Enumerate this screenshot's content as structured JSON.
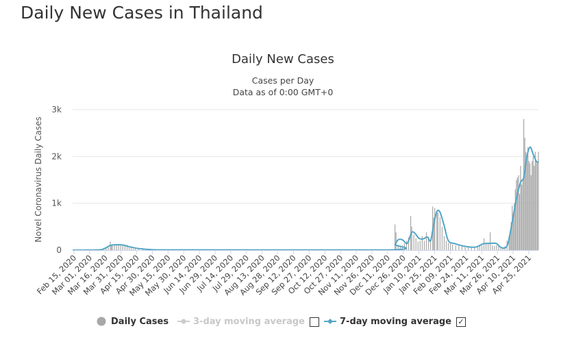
{
  "page": {
    "title": "Daily New Cases in Thailand"
  },
  "legend": {
    "daily_cases": "Daily Cases",
    "ma3": "3-day moving average",
    "ma7": "7-day moving average",
    "ma3_checked": false,
    "ma7_checked": true,
    "check_mark": "✓"
  },
  "colors": {
    "bars": "#a8a8a8",
    "line": "#51a5c6",
    "grid": "#e6e6e6",
    "ma3_disabled": "#cccccc"
  },
  "chart_data": {
    "type": "bar",
    "title": "Daily New Cases",
    "subtitle": [
      "Cases per Day",
      "Data as of 0:00 GMT+0"
    ],
    "ylabel": "Novel Coronavirus Daily Cases",
    "xlabel": "",
    "ylim": [
      0,
      3000
    ],
    "yticks": [
      0,
      1000,
      2000,
      3000
    ],
    "ytick_labels": [
      "0",
      "1k",
      "2k",
      "3k"
    ],
    "x_tick_labels": [
      "Feb 15, 2020",
      "Mar 01, 2020",
      "Mar 16, 2020",
      "Mar 31, 2020",
      "Apr 15, 2020",
      "Apr 30, 2020",
      "May 15, 2020",
      "May 30, 2020",
      "Jun 14, 2020",
      "Jun 29, 2020",
      "Jul 14, 2020",
      "Jul 29, 2020",
      "Aug 13, 2020",
      "Aug 28, 2020",
      "Sep 12, 2020",
      "Sep 27, 2020",
      "Oct 12, 2020",
      "Oct 27, 2020",
      "Nov 11, 2020",
      "Nov 26, 2020",
      "Dec 11, 2020",
      "Dec 26, 2020",
      "Jan 10, 2021",
      "Jan 25, 2021",
      "Feb 09, 2021",
      "Feb 24, 2021",
      "Mar 11, 2021",
      "Mar 26, 2021",
      "Apr 10, 2021",
      "Apr 25, 2021"
    ],
    "x_start": "2020-02-15",
    "x_end": "2021-05-05",
    "grid": true,
    "legend_position": "bottom",
    "series": [
      {
        "name": "Daily Cases",
        "kind": "bar",
        "points": [
          [
            "2020-03-16",
            30
          ],
          [
            "2020-03-18",
            50
          ],
          [
            "2020-03-20",
            60
          ],
          [
            "2020-03-22",
            180
          ],
          [
            "2020-03-23",
            110
          ],
          [
            "2020-03-24",
            100
          ],
          [
            "2020-03-26",
            110
          ],
          [
            "2020-03-28",
            120
          ],
          [
            "2020-03-30",
            130
          ],
          [
            "2020-04-01",
            110
          ],
          [
            "2020-04-03",
            100
          ],
          [
            "2020-04-05",
            100
          ],
          [
            "2020-04-07",
            110
          ],
          [
            "2020-04-09",
            60
          ],
          [
            "2020-04-11",
            50
          ],
          [
            "2020-04-13",
            30
          ],
          [
            "2020-04-15",
            30
          ],
          [
            "2020-04-18",
            25
          ],
          [
            "2020-04-22",
            20
          ],
          [
            "2020-04-26",
            15
          ],
          [
            "2020-05-01",
            8
          ],
          [
            "2020-05-08",
            5
          ],
          [
            "2020-12-19",
            550
          ],
          [
            "2020-12-20",
            380
          ],
          [
            "2020-12-22",
            110
          ],
          [
            "2020-12-24",
            70
          ],
          [
            "2020-12-26",
            100
          ],
          [
            "2020-12-28",
            140
          ],
          [
            "2020-12-30",
            200
          ],
          [
            "2021-01-01",
            270
          ],
          [
            "2021-01-03",
            730
          ],
          [
            "2021-01-04",
            500
          ],
          [
            "2021-01-06",
            330
          ],
          [
            "2021-01-08",
            250
          ],
          [
            "2021-01-10",
            180
          ],
          [
            "2021-01-12",
            200
          ],
          [
            "2021-01-14",
            300
          ],
          [
            "2021-01-16",
            200
          ],
          [
            "2021-01-18",
            380
          ],
          [
            "2021-01-20",
            250
          ],
          [
            "2021-01-22",
            200
          ],
          [
            "2021-01-24",
            930
          ],
          [
            "2021-01-25",
            700
          ],
          [
            "2021-01-26",
            900
          ],
          [
            "2021-01-28",
            850
          ],
          [
            "2021-01-29",
            800
          ],
          [
            "2021-01-31",
            700
          ],
          [
            "2021-02-02",
            500
          ],
          [
            "2021-02-04",
            300
          ],
          [
            "2021-02-06",
            200
          ],
          [
            "2021-02-08",
            150
          ],
          [
            "2021-02-10",
            160
          ],
          [
            "2021-02-12",
            120
          ],
          [
            "2021-02-15",
            100
          ],
          [
            "2021-02-18",
            90
          ],
          [
            "2021-02-21",
            80
          ],
          [
            "2021-02-24",
            60
          ],
          [
            "2021-02-27",
            70
          ],
          [
            "2021-03-02",
            60
          ],
          [
            "2021-03-05",
            60
          ],
          [
            "2021-03-08",
            80
          ],
          [
            "2021-03-10",
            110
          ],
          [
            "2021-03-12",
            100
          ],
          [
            "2021-03-14",
            250
          ],
          [
            "2021-03-16",
            150
          ],
          [
            "2021-03-18",
            160
          ],
          [
            "2021-03-20",
            380
          ],
          [
            "2021-03-22",
            100
          ],
          [
            "2021-03-24",
            90
          ],
          [
            "2021-03-26",
            110
          ],
          [
            "2021-03-28",
            90
          ],
          [
            "2021-03-30",
            40
          ],
          [
            "2021-04-01",
            50
          ],
          [
            "2021-04-03",
            80
          ],
          [
            "2021-04-05",
            200
          ],
          [
            "2021-04-07",
            300
          ],
          [
            "2021-04-08",
            400
          ],
          [
            "2021-04-09",
            600
          ],
          [
            "2021-04-10",
            950
          ],
          [
            "2021-04-11",
            800
          ],
          [
            "2021-04-12",
            1000
          ],
          [
            "2021-04-13",
            1300
          ],
          [
            "2021-04-14",
            1500
          ],
          [
            "2021-04-15",
            1550
          ],
          [
            "2021-04-16",
            1600
          ],
          [
            "2021-04-17",
            1200
          ],
          [
            "2021-04-18",
            1800
          ],
          [
            "2021-04-19",
            1400
          ],
          [
            "2021-04-20",
            1500
          ],
          [
            "2021-04-21",
            2800
          ],
          [
            "2021-04-22",
            2400
          ],
          [
            "2021-04-23",
            2100
          ],
          [
            "2021-04-24",
            2000
          ],
          [
            "2021-04-25",
            2200
          ],
          [
            "2021-04-26",
            1900
          ],
          [
            "2021-04-27",
            1850
          ],
          [
            "2021-04-28",
            1600
          ],
          [
            "2021-04-29",
            1900
          ],
          [
            "2021-04-30",
            2000
          ],
          [
            "2021-05-01",
            1800
          ],
          [
            "2021-05-02",
            2100
          ],
          [
            "2021-05-03",
            1900
          ],
          [
            "2021-05-04",
            1900
          ],
          [
            "2021-05-05",
            2100
          ]
        ]
      },
      {
        "name": "7-day moving average",
        "kind": "line",
        "points": [
          [
            "2020-02-15",
            0
          ],
          [
            "2020-03-10",
            5
          ],
          [
            "2020-03-16",
            30
          ],
          [
            "2020-03-22",
            100
          ],
          [
            "2020-03-28",
            115
          ],
          [
            "2020-04-03",
            110
          ],
          [
            "2020-04-08",
            80
          ],
          [
            "2020-04-15",
            45
          ],
          [
            "2020-04-22",
            25
          ],
          [
            "2020-05-01",
            10
          ],
          [
            "2020-05-15",
            5
          ],
          [
            "2020-06-14",
            5
          ],
          [
            "2020-12-15",
            5
          ],
          [
            "2020-12-19",
            120
          ],
          [
            "2020-12-22",
            220
          ],
          [
            "2020-12-26",
            220
          ],
          [
            "2020-12-30",
            140
          ],
          [
            "2021-01-01",
            200
          ],
          [
            "2021-01-04",
            380
          ],
          [
            "2021-01-07",
            360
          ],
          [
            "2021-01-11",
            250
          ],
          [
            "2021-01-15",
            240
          ],
          [
            "2021-01-19",
            280
          ],
          [
            "2021-01-22",
            200
          ],
          [
            "2021-01-25",
            550
          ],
          [
            "2021-01-28",
            820
          ],
          [
            "2021-01-31",
            810
          ],
          [
            "2021-02-04",
            520
          ],
          [
            "2021-02-08",
            200
          ],
          [
            "2021-02-14",
            140
          ],
          [
            "2021-02-20",
            100
          ],
          [
            "2021-02-27",
            70
          ],
          [
            "2021-03-06",
            65
          ],
          [
            "2021-03-10",
            100
          ],
          [
            "2021-03-14",
            140
          ],
          [
            "2021-03-20",
            145
          ],
          [
            "2021-03-26",
            140
          ],
          [
            "2021-03-30",
            60
          ],
          [
            "2021-04-03",
            50
          ],
          [
            "2021-04-06",
            150
          ],
          [
            "2021-04-10",
            600
          ],
          [
            "2021-04-14",
            1100
          ],
          [
            "2021-04-18",
            1450
          ],
          [
            "2021-04-21",
            1550
          ],
          [
            "2021-04-24",
            2000
          ],
          [
            "2021-04-27",
            2200
          ],
          [
            "2021-04-30",
            2050
          ],
          [
            "2021-05-03",
            1900
          ],
          [
            "2021-05-05",
            1880
          ]
        ]
      }
    ]
  }
}
